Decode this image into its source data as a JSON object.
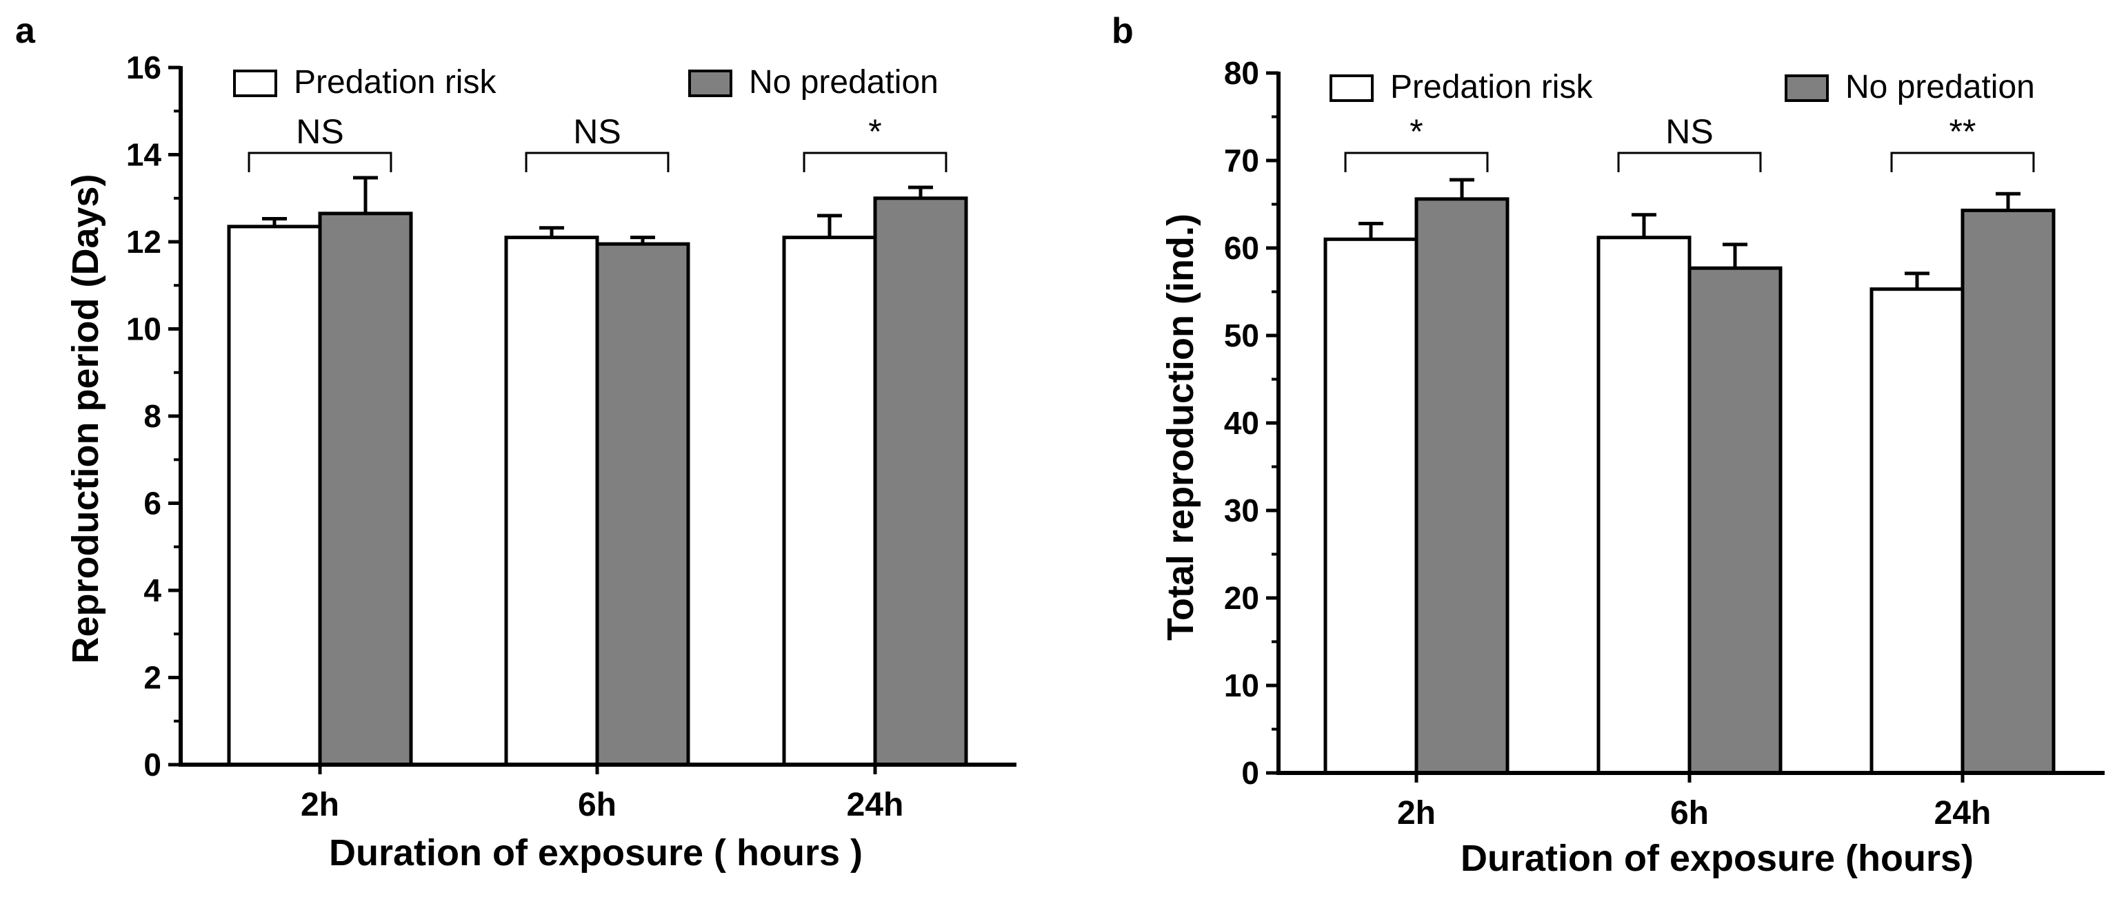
{
  "colors": {
    "predation_risk": "#ffffff",
    "no_predation": "#808080",
    "stroke": "#000000"
  },
  "chart_data": [
    {
      "panel": "a",
      "type": "bar",
      "categories": [
        "2h",
        "6h",
        "24h"
      ],
      "series": [
        {
          "name": "Predation risk",
          "values": [
            12.35,
            12.1,
            12.1
          ],
          "errors": [
            0.18,
            0.22,
            0.5
          ]
        },
        {
          "name": "No predation",
          "values": [
            12.65,
            11.95,
            13.0
          ],
          "errors": [
            0.82,
            0.15,
            0.25
          ]
        }
      ],
      "significance": [
        "NS",
        "NS",
        "*"
      ],
      "xlabel": "Duration of exposure ( hours )",
      "ylabel": "Reproduction period (Days)",
      "ylim": [
        0,
        16
      ],
      "yticks": [
        0,
        2,
        4,
        6,
        8,
        10,
        12,
        14,
        16
      ],
      "grid": false,
      "legend_position": "top"
    },
    {
      "panel": "b",
      "type": "bar",
      "categories": [
        "2h",
        "6h",
        "24h"
      ],
      "series": [
        {
          "name": "Predation risk",
          "values": [
            61,
            61.2,
            55.3
          ],
          "errors": [
            1.8,
            2.6,
            1.8
          ]
        },
        {
          "name": "No predation",
          "values": [
            65.6,
            57.7,
            64.3
          ],
          "errors": [
            2.2,
            2.7,
            1.9
          ]
        }
      ],
      "significance": [
        "*",
        "NS",
        "**"
      ],
      "xlabel": "Duration of exposure (hours)",
      "ylabel": "Total reproduction (ind.)",
      "ylim": [
        0,
        80
      ],
      "yticks": [
        0,
        10,
        20,
        30,
        40,
        50,
        60,
        70,
        80
      ],
      "grid": false,
      "legend_position": "top"
    }
  ]
}
